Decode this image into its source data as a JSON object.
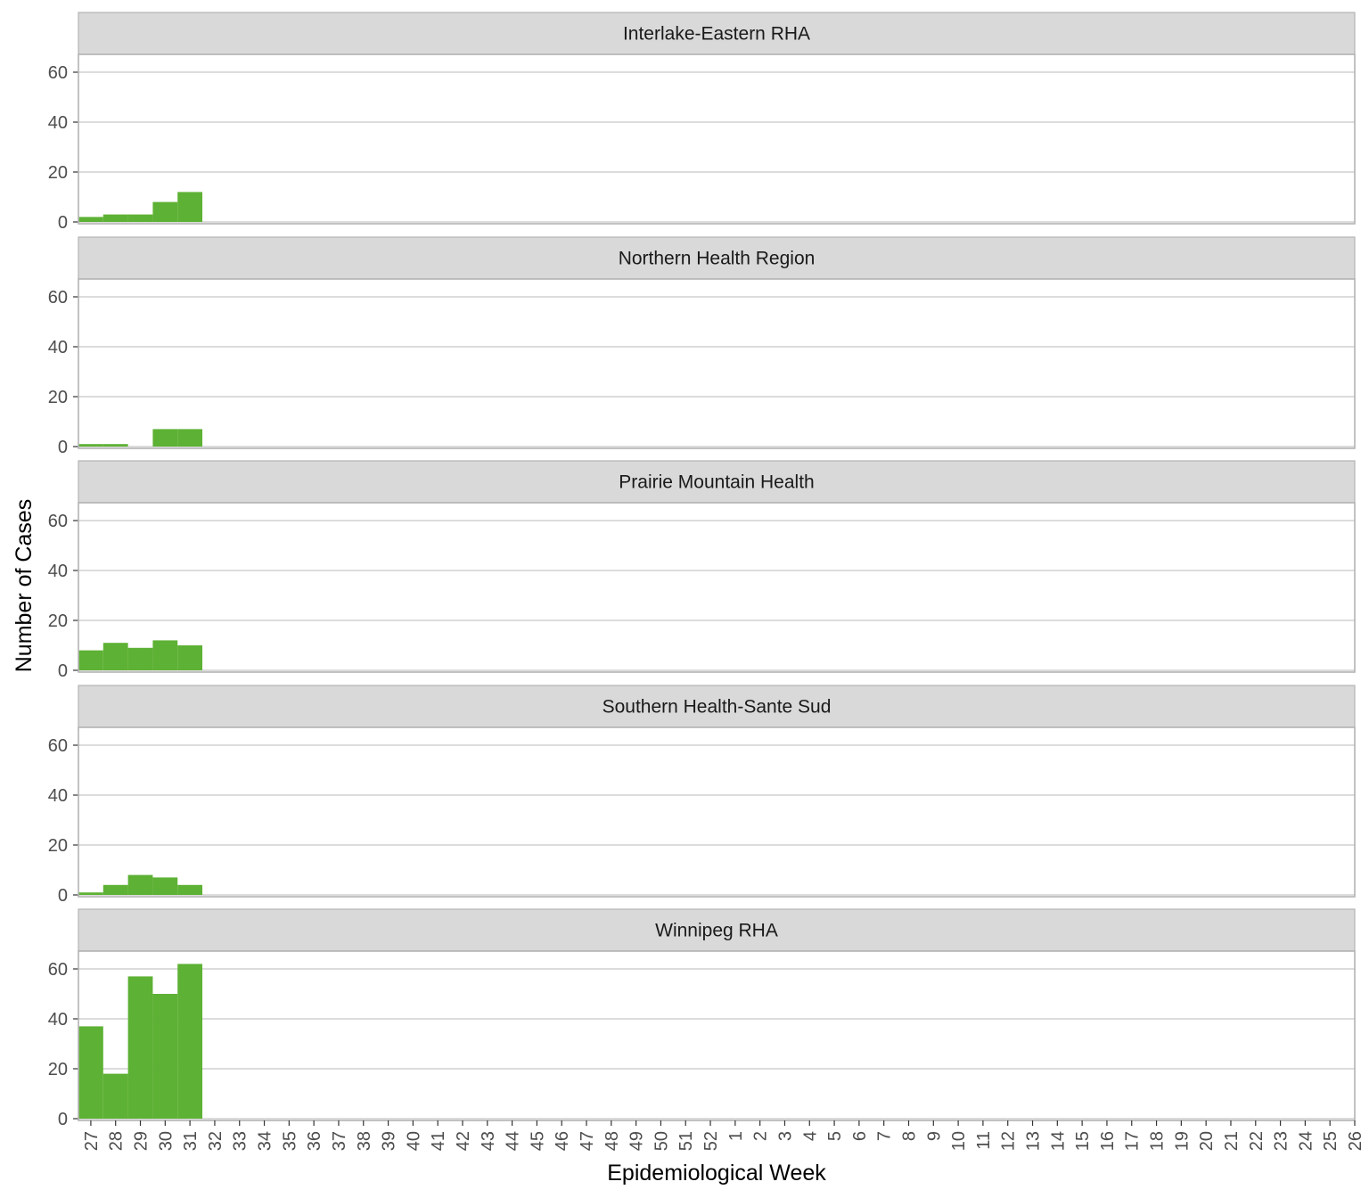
{
  "chart_data": {
    "type": "bar",
    "xlabel": "Epidemiological Week",
    "ylabel": "Number of Cases",
    "ylim": [
      0,
      65
    ],
    "yticks": [
      0,
      20,
      40,
      60
    ],
    "grid": true,
    "bar_color": "#5db134",
    "categories": [
      "27",
      "28",
      "29",
      "30",
      "31",
      "32",
      "33",
      "34",
      "35",
      "36",
      "37",
      "38",
      "39",
      "40",
      "41",
      "42",
      "43",
      "44",
      "45",
      "46",
      "47",
      "48",
      "49",
      "50",
      "51",
      "52",
      "1",
      "2",
      "3",
      "4",
      "5",
      "6",
      "7",
      "8",
      "9",
      "10",
      "11",
      "12",
      "13",
      "14",
      "15",
      "16",
      "17",
      "18",
      "19",
      "20",
      "21",
      "22",
      "23",
      "24",
      "25",
      "26"
    ],
    "panels": [
      {
        "name": "Interlake-Eastern RHA",
        "values": [
          2,
          3,
          3,
          8,
          12
        ]
      },
      {
        "name": "Northern Health Region",
        "values": [
          1,
          1,
          0,
          7,
          7
        ]
      },
      {
        "name": "Prairie Mountain Health",
        "values": [
          8,
          11,
          9,
          12,
          10
        ]
      },
      {
        "name": "Southern Health-Sante Sud",
        "values": [
          1,
          4,
          8,
          7,
          4
        ]
      },
      {
        "name": "Winnipeg RHA",
        "values": [
          37,
          18,
          57,
          50,
          62
        ]
      }
    ]
  }
}
